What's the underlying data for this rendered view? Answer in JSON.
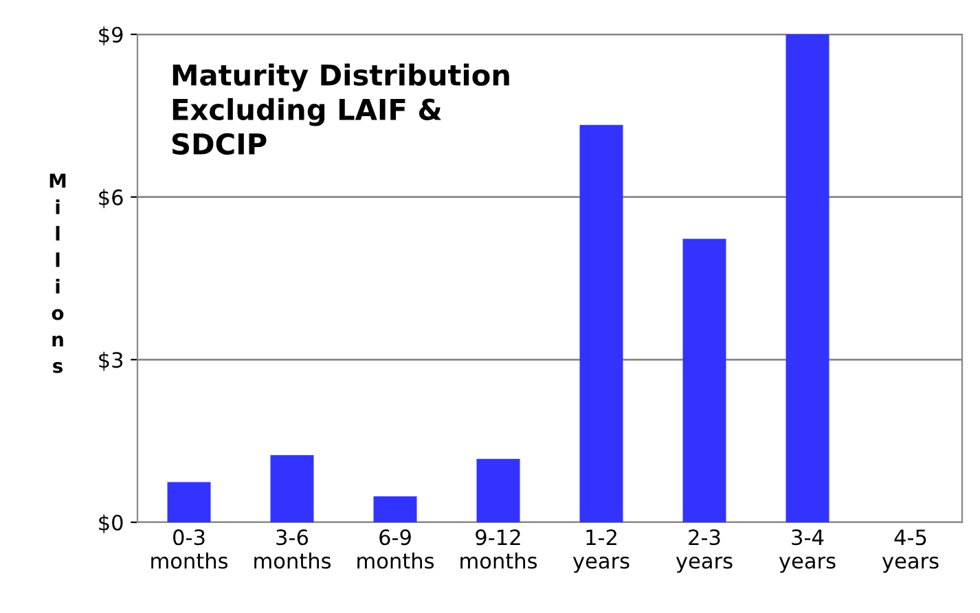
{
  "chart_data": {
    "type": "bar",
    "title": "Maturity Distribution\nExcluding LAIF &\nSDCIP",
    "ylabel": "Millions",
    "categories": [
      "0-3\nmonths",
      "3-6\nmonths",
      "6-9\nmonths",
      "9-12\nmonths",
      "1-2\nyears",
      "2-3\nyears",
      "3-4\nyears",
      "4-5\nyears"
    ],
    "values": [
      0.74,
      1.24,
      0.48,
      1.17,
      7.33,
      5.23,
      9.0,
      0
    ],
    "color": "#3333ff",
    "ylim": [
      0,
      9
    ],
    "yticks": [
      {
        "value": 0,
        "label": "$0"
      },
      {
        "value": 3,
        "label": "$3"
      },
      {
        "value": 6,
        "label": "$6"
      },
      {
        "value": 9,
        "label": "$9"
      }
    ],
    "grid": "y",
    "legend": false
  }
}
